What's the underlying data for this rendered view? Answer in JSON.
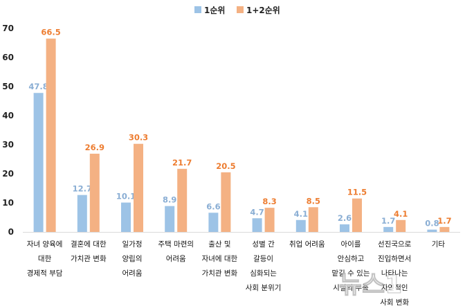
{
  "chart_data": {
    "type": "bar",
    "ylim": [
      0,
      70
    ],
    "yticks": [
      "0",
      "10",
      "20",
      "30",
      "40",
      "50",
      "60",
      "70"
    ],
    "grid": false,
    "legend_position": "top",
    "categories": [
      [
        "자녀 양육에",
        "대한",
        "경제적 부담"
      ],
      [
        "결혼에 대한",
        "가치관 변화"
      ],
      [
        "일가정",
        "양립의",
        "어려움"
      ],
      [
        "주택 마련의",
        "어려움"
      ],
      [
        "출산 및",
        "자녀에 대한",
        "가치관 변화"
      ],
      [
        "성별 간",
        "갈등이",
        "심화되는",
        "사회 분위기"
      ],
      [
        "취업 어려움"
      ],
      [
        "아이를",
        "안심하고",
        "맡길 수 있는",
        "시설의 부족"
      ],
      [
        "선진국으로",
        "진입하면서",
        "나타나는",
        "자연적인",
        "사회 변화"
      ],
      [
        "기타"
      ]
    ],
    "series": [
      {
        "name": "1순위",
        "color": "#9dc3e6",
        "label_color": "#8aaed4",
        "values": [
          47.8,
          12.7,
          10.1,
          8.9,
          6.6,
          4.7,
          4.1,
          2.6,
          1.7,
          0.8
        ],
        "labels": [
          "47.8",
          "12.7",
          "10.1",
          "8.9",
          "6.6",
          "4.7",
          "4.1",
          "2.6",
          "1.7",
          "0.8"
        ]
      },
      {
        "name": "1+2순위",
        "color": "#f4b183",
        "label_color": "#ed7d31",
        "values": [
          66.5,
          26.9,
          30.3,
          21.7,
          20.5,
          8.3,
          8.5,
          11.5,
          4.1,
          1.7
        ],
        "labels": [
          "66.5",
          "26.9",
          "30.3",
          "21.7",
          "20.5",
          "8.3",
          "8.5",
          "11.5",
          "4.1",
          "1.7"
        ]
      }
    ]
  },
  "watermark": "뉴스1"
}
